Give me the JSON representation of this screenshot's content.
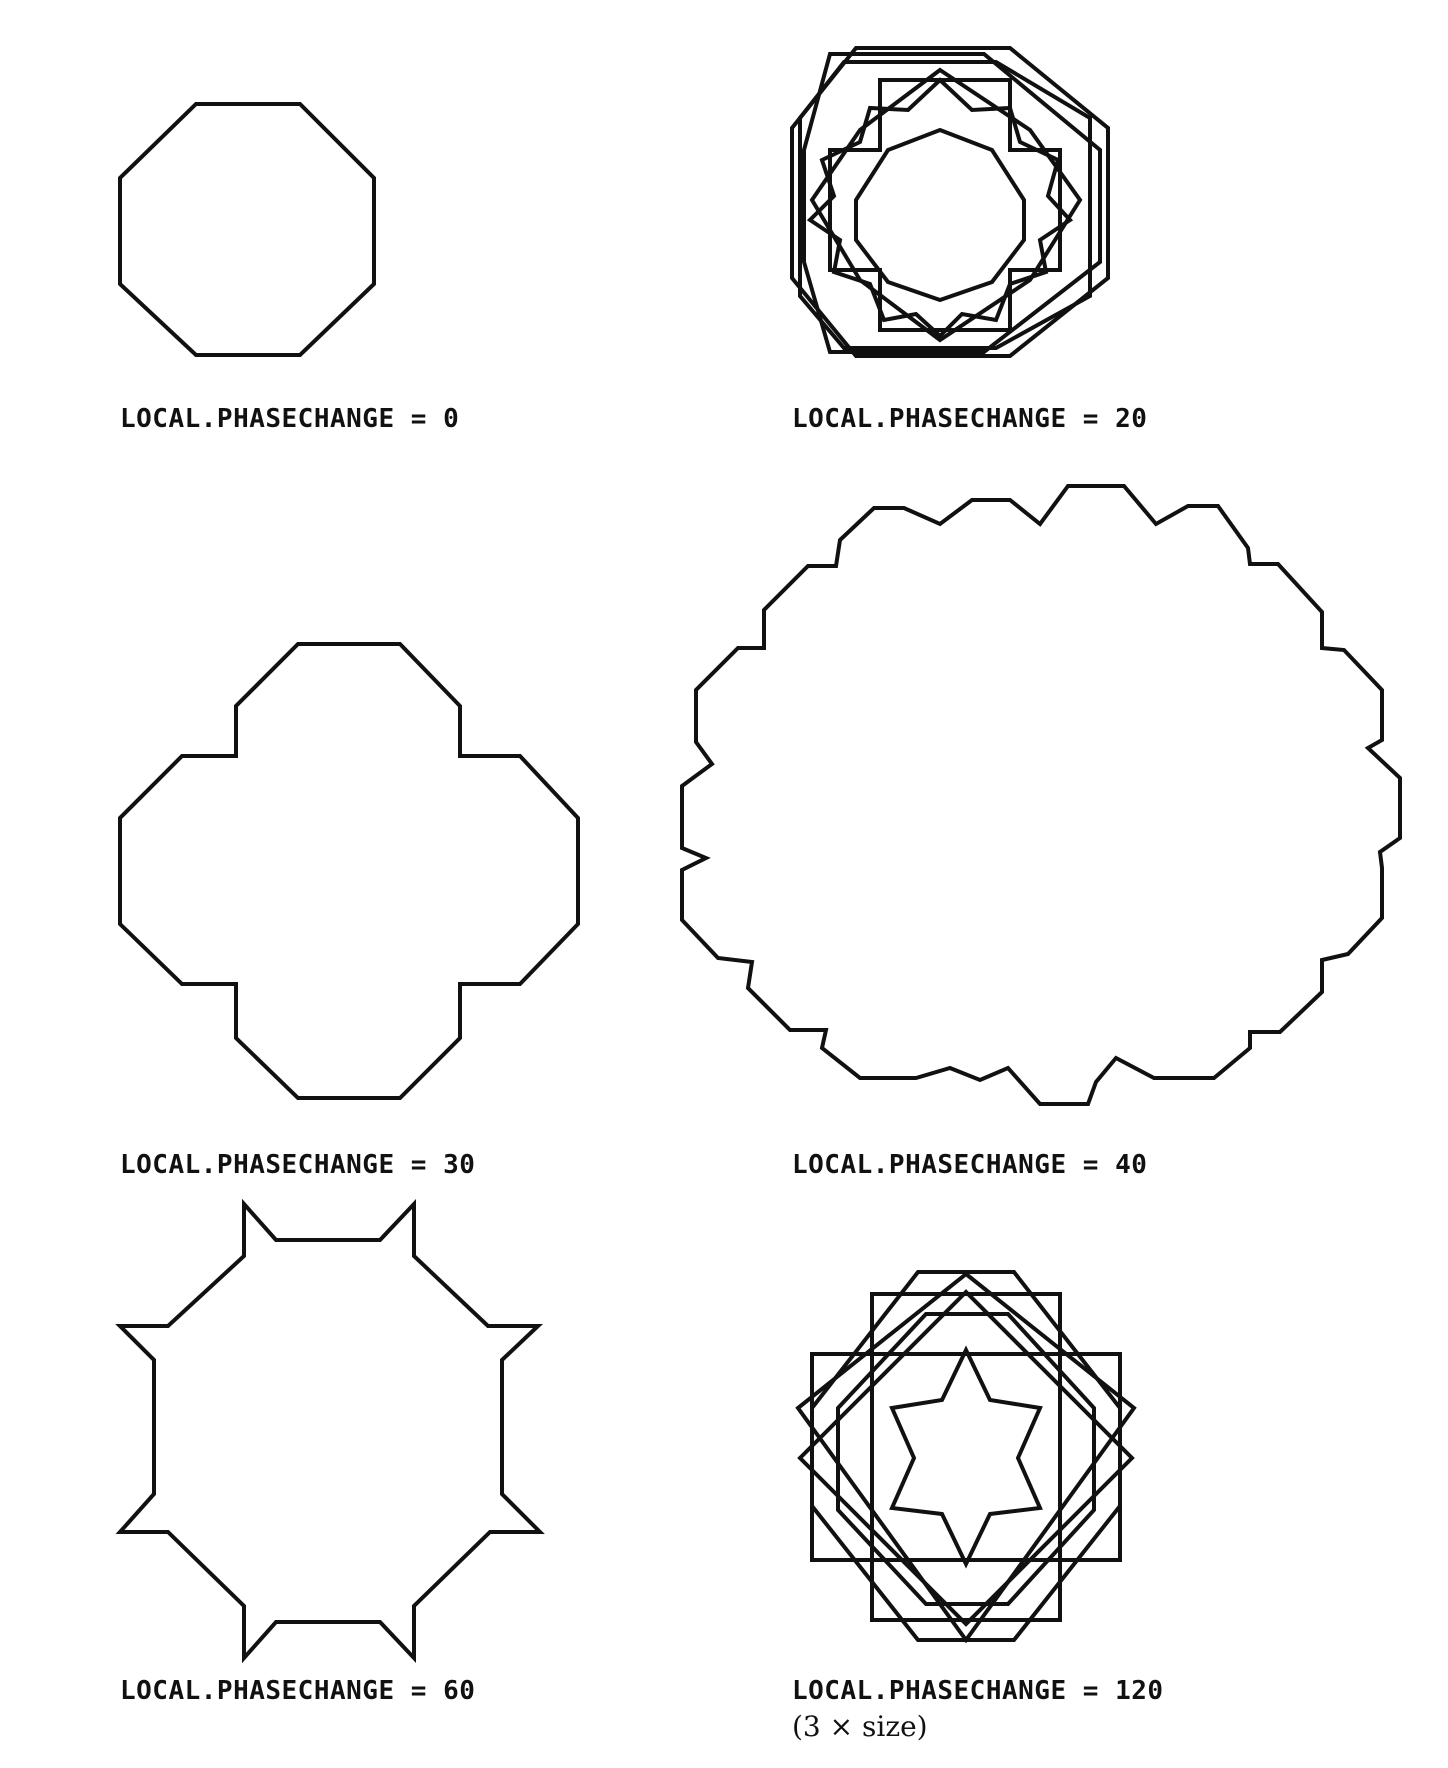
{
  "figure": {
    "panels": [
      {
        "id": "p0",
        "caption": "LOCAL.PHASECHANGE = 0",
        "phase": 0
      },
      {
        "id": "p20",
        "caption": "LOCAL.PHASECHANGE = 20",
        "phase": 20
      },
      {
        "id": "p30",
        "caption": "LOCAL.PHASECHANGE = 30",
        "phase": 30
      },
      {
        "id": "p40",
        "caption": "LOCAL.PHASECHANGE = 40",
        "phase": 40
      },
      {
        "id": "p60",
        "caption": "LOCAL.PHASECHANGE = 60",
        "phase": 60
      },
      {
        "id": "p120",
        "caption": "LOCAL.PHASECHANGE = 120",
        "phase": 120,
        "note": "(3 × size)"
      }
    ],
    "stroke_color": "#111111",
    "background": "#ffffff"
  }
}
